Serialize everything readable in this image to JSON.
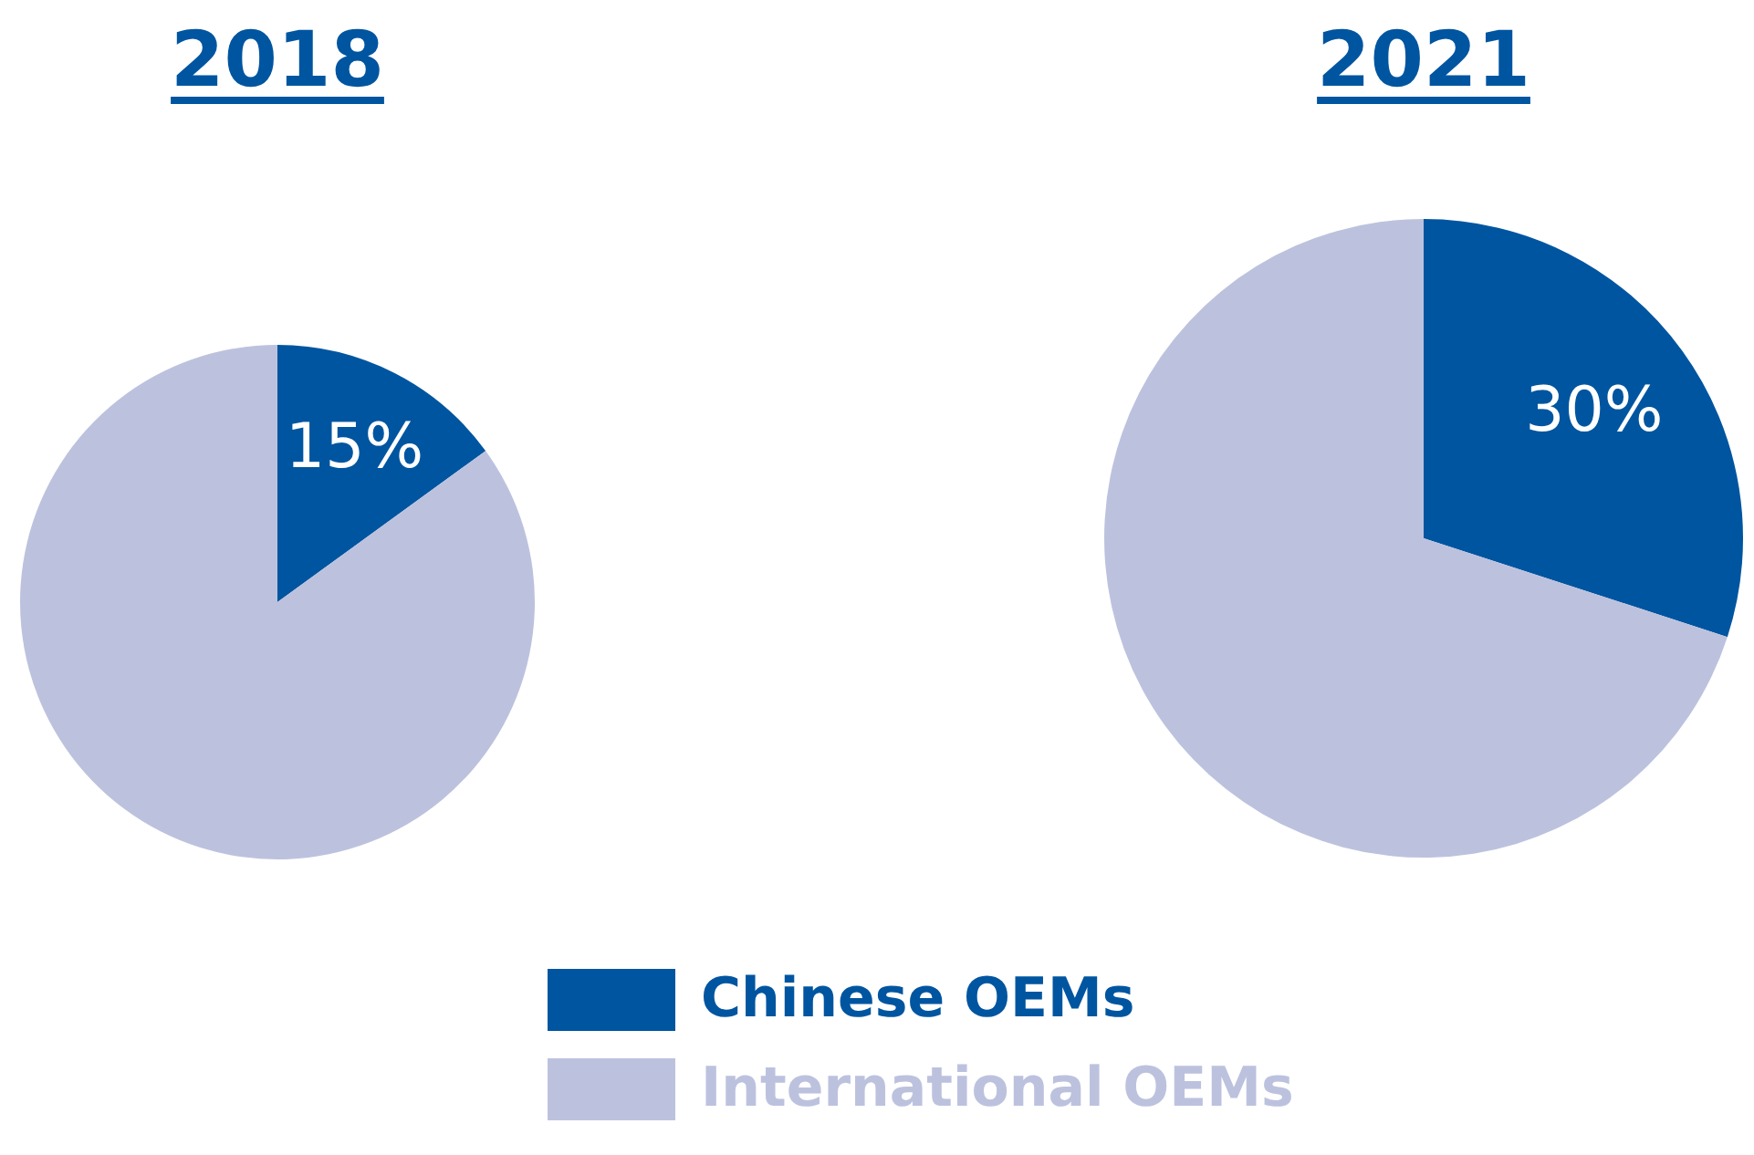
{
  "chart_data": {
    "type": "pie",
    "categories": [
      "Chinese OEMs",
      "International OEMs"
    ],
    "colors": [
      "#0055a0",
      "#bcc2de"
    ],
    "legend": "bottom",
    "series": [
      {
        "name": "2018",
        "values": [
          15,
          85
        ],
        "value_labels": [
          "15%",
          null
        ]
      },
      {
        "name": "2021",
        "values": [
          30,
          70
        ],
        "value_labels": [
          "30%",
          null
        ]
      }
    ]
  }
}
